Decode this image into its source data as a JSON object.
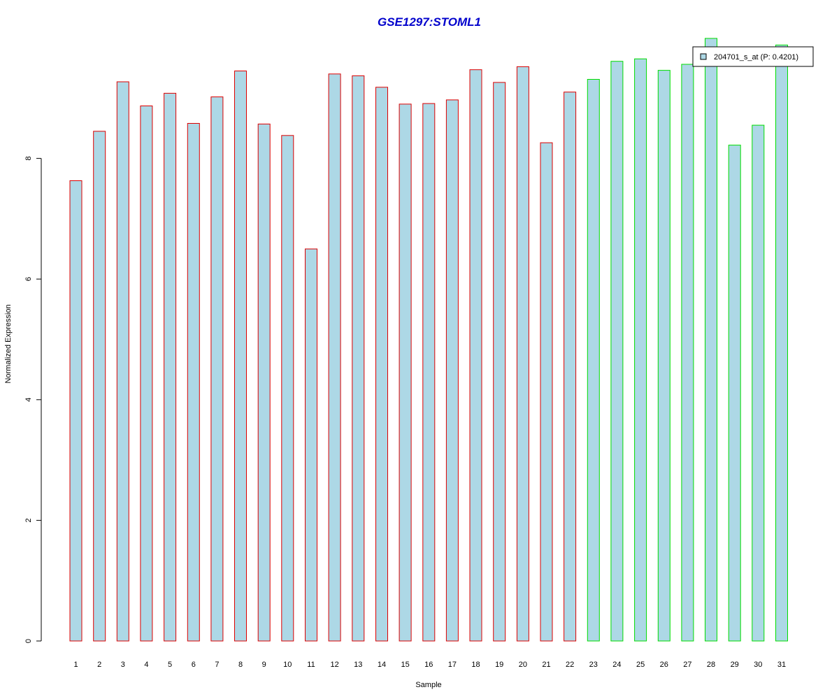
{
  "chart_data": {
    "type": "bar",
    "title": "GSE1297:STOML1",
    "xlabel": "Sample",
    "ylabel": "Normalized Expression",
    "ylim": [
      0,
      10
    ],
    "yticks": [
      0,
      2,
      4,
      6,
      8
    ],
    "categories": [
      "1",
      "2",
      "3",
      "4",
      "5",
      "6",
      "7",
      "8",
      "9",
      "10",
      "11",
      "12",
      "13",
      "14",
      "15",
      "16",
      "17",
      "18",
      "19",
      "20",
      "21",
      "22",
      "23",
      "24",
      "25",
      "26",
      "27",
      "28",
      "29",
      "30",
      "31"
    ],
    "series": [
      {
        "name": "204701_s_at (P: 0.4201)",
        "values": [
          7.63,
          8.45,
          9.27,
          8.87,
          9.08,
          8.58,
          9.02,
          9.45,
          8.57,
          8.38,
          6.5,
          9.4,
          9.37,
          9.18,
          8.9,
          8.91,
          8.97,
          9.47,
          9.26,
          9.52,
          8.26,
          9.1,
          9.31,
          9.61,
          9.65,
          9.46,
          9.56,
          9.99,
          8.22,
          8.55,
          9.88
        ],
        "fill_color": "#add8e6"
      }
    ],
    "group_colors": [
      "#dd0000",
      "#dd0000",
      "#dd0000",
      "#dd0000",
      "#dd0000",
      "#dd0000",
      "#dd0000",
      "#dd0000",
      "#dd0000",
      "#dd0000",
      "#dd0000",
      "#dd0000",
      "#dd0000",
      "#dd0000",
      "#dd0000",
      "#dd0000",
      "#dd0000",
      "#dd0000",
      "#dd0000",
      "#dd0000",
      "#dd0000",
      "#dd0000",
      "#00dd00",
      "#00dd00",
      "#00dd00",
      "#00dd00",
      "#00dd00",
      "#00dd00",
      "#00dd00",
      "#00dd00",
      "#00dd00"
    ],
    "title_color": "#0000cc",
    "legend": {
      "entries": [
        "204701_s_at (P: 0.4201)"
      ],
      "position": "top-right"
    },
    "grid": false
  }
}
